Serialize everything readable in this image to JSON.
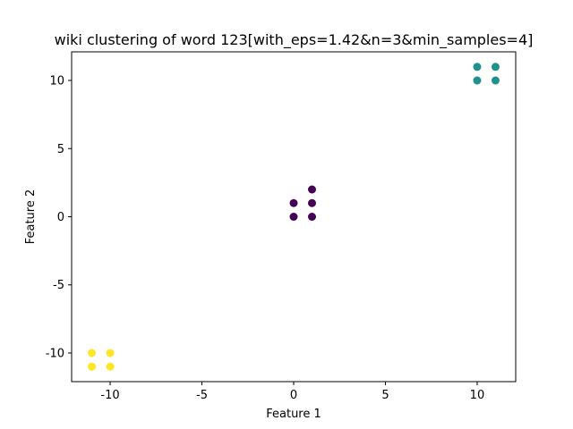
{
  "chart_data": {
    "type": "scatter",
    "title": "wiki clustering of word 123[with_eps=1.42&n=3&min_samples=4]",
    "xlabel": "Feature 1",
    "ylabel": "Feature 2",
    "xlim": [
      -12.1,
      12.1
    ],
    "ylim": [
      -12.1,
      12.1
    ],
    "grid": false,
    "xticks": [
      -10,
      -5,
      0,
      5,
      10
    ],
    "yticks": [
      -10,
      -5,
      0,
      5,
      10
    ],
    "series": [
      {
        "color": "#440154",
        "points": [
          [
            0,
            1
          ],
          [
            0,
            0
          ],
          [
            1,
            2
          ],
          [
            1,
            1
          ],
          [
            1,
            0
          ]
        ]
      },
      {
        "color": "#21918c",
        "points": [
          [
            10,
            11
          ],
          [
            11,
            11
          ],
          [
            10,
            10
          ],
          [
            11,
            10
          ]
        ]
      },
      {
        "color": "#fde725",
        "points": [
          [
            -11,
            -10
          ],
          [
            -10,
            -10
          ],
          [
            -11,
            -11
          ],
          [
            -10,
            -11
          ]
        ]
      }
    ]
  }
}
